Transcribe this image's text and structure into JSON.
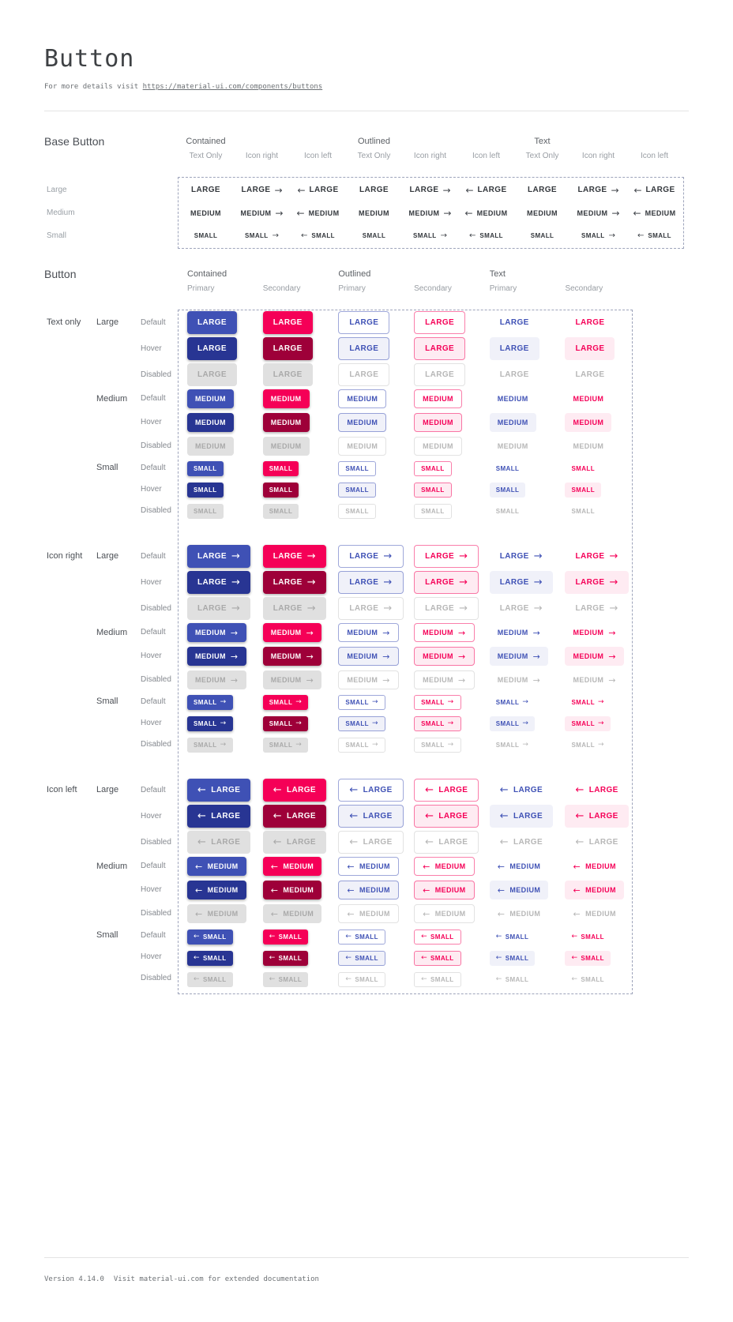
{
  "page": {
    "title": "Button",
    "subtitle_prefix": "For more details visit ",
    "subtitle_link": "https://material-ui.com/components/buttons",
    "footer_version": "Version 4.14.0",
    "footer_note": "Visit material-ui.com for extended documentation"
  },
  "colors": {
    "primary": "#3f51b5",
    "primary_hover": "#283593",
    "secondary": "#f50057",
    "secondary_hover": "#9e0039",
    "disabled_bg": "#e0e0e0",
    "disabled_text": "#a9a9a9",
    "text_disabled": "#b7b7b7",
    "outlined_primary_border": "rgba(63,81,181,0.5)",
    "outlined_secondary_border": "rgba(245,0,87,0.5)",
    "outlined_disabled_border": "#e2e2e2",
    "tint_primary": "rgba(63,81,181,0.08)",
    "tint_secondary": "rgba(245,0,87,0.08)",
    "dashed_border": "#9ea4bb",
    "divider": "#e4e4e4"
  },
  "icons": {
    "arrow_right": "→",
    "arrow_left": "←"
  },
  "base_button": {
    "section_title": "Base Button",
    "groups": [
      "Contained",
      "Outlined",
      "Text"
    ],
    "subcolumns": [
      "Text Only",
      "Icon right",
      "Icon left"
    ],
    "icon_order": [
      "none",
      "right",
      "left"
    ],
    "rows": [
      {
        "label": "Large",
        "text": "LARGE",
        "size": "large"
      },
      {
        "label": "Medium",
        "text": "MEDIUM",
        "size": "medium"
      },
      {
        "label": "Small",
        "text": "SMALL",
        "size": "small"
      }
    ]
  },
  "button_section": {
    "section_title": "Button",
    "groups": [
      "Contained",
      "Outlined",
      "Text"
    ],
    "subcolumns": [
      "Primary",
      "Secondary"
    ],
    "columns": [
      {
        "style": "contained",
        "tone": "primary"
      },
      {
        "style": "contained",
        "tone": "secondary"
      },
      {
        "style": "outlined",
        "tone": "primary"
      },
      {
        "style": "outlined",
        "tone": "secondary"
      },
      {
        "style": "text",
        "tone": "primary"
      },
      {
        "style": "text",
        "tone": "secondary"
      }
    ],
    "variants": [
      {
        "label": "Text only",
        "icon": "none"
      },
      {
        "label": "Icon right",
        "icon": "right"
      },
      {
        "label": "Icon left",
        "icon": "left"
      }
    ],
    "sizes": [
      {
        "label": "Large",
        "text": "LARGE",
        "size": "large"
      },
      {
        "label": "Medium",
        "text": "MEDIUM",
        "size": "medium"
      },
      {
        "label": "Small",
        "text": "SMALL",
        "size": "small"
      }
    ],
    "states": [
      {
        "label": "Default",
        "key": "default"
      },
      {
        "label": "Hover",
        "key": "hover"
      },
      {
        "label": "Disabled",
        "key": "disabled"
      }
    ]
  }
}
